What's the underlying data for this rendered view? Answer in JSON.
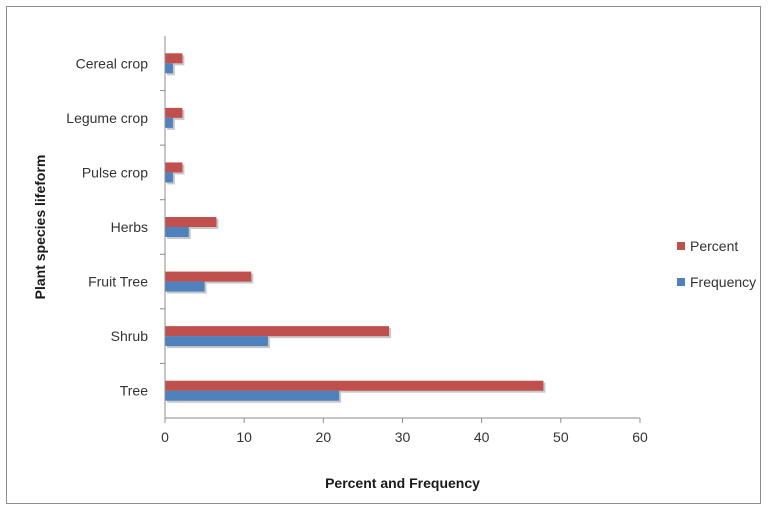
{
  "chart_data": {
    "type": "bar",
    "orientation": "horizontal",
    "categories": [
      "Tree",
      "Shrub",
      "Fruit Tree",
      "Herbs",
      "Pulse crop",
      "Legume crop",
      "Cereal crop"
    ],
    "series": [
      {
        "name": "Frequency",
        "values": [
          22,
          13,
          5,
          3,
          1,
          1,
          1
        ],
        "color": "#4F81BD"
      },
      {
        "name": "Percent",
        "values": [
          47.8,
          28.3,
          10.9,
          6.5,
          2.2,
          2.2,
          2.2
        ],
        "color": "#C0504D"
      }
    ],
    "xlabel": "Percent and Frequency",
    "ylabel": "Plant species lifeform",
    "xlim": [
      0,
      60
    ],
    "xticks": [
      0,
      10,
      20,
      30,
      40,
      50,
      60
    ],
    "grid": false,
    "legend_position": "right"
  }
}
